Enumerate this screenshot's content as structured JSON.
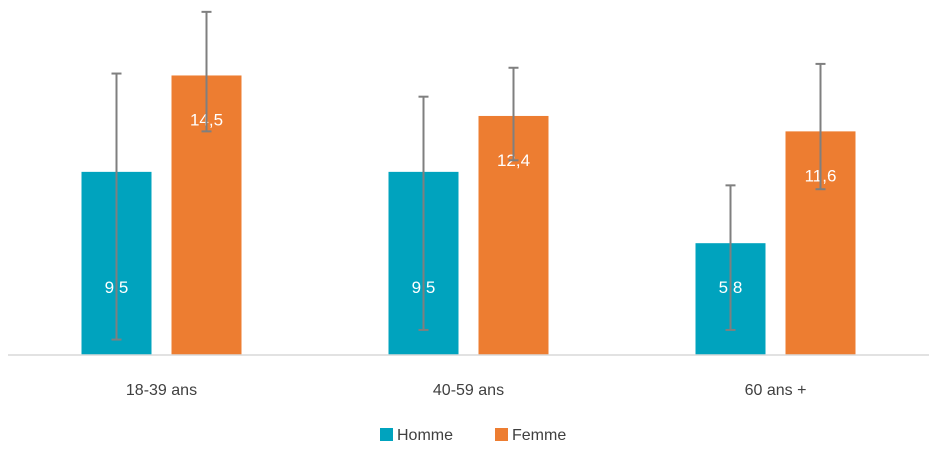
{
  "chart_data": {
    "type": "bar",
    "categories": [
      "18-39 ans",
      "40-59 ans",
      "60 ans +"
    ],
    "series": [
      {
        "name": "Homme",
        "color": "#00A3BE",
        "values": [
          9.5,
          9.5,
          5.8
        ],
        "labels": [
          "9,5",
          "9,5",
          "5,8"
        ],
        "error_low": [
          0.8,
          1.3,
          1.3
        ],
        "error_high": [
          14.6,
          13.4,
          8.8
        ]
      },
      {
        "name": "Femme",
        "color": "#ED7D31",
        "values": [
          14.5,
          12.4,
          11.6
        ],
        "labels": [
          "14,5",
          "12,4",
          "11,6"
        ],
        "error_low": [
          11.6,
          10.1,
          8.6
        ],
        "error_high": [
          17.8,
          14.9,
          15.1
        ]
      }
    ],
    "ylim": [
      0,
      18
    ],
    "grid": false,
    "legend_position": "bottom",
    "error_bar_color": "#7f7f7f",
    "axis_color": "#d9d9d9"
  }
}
